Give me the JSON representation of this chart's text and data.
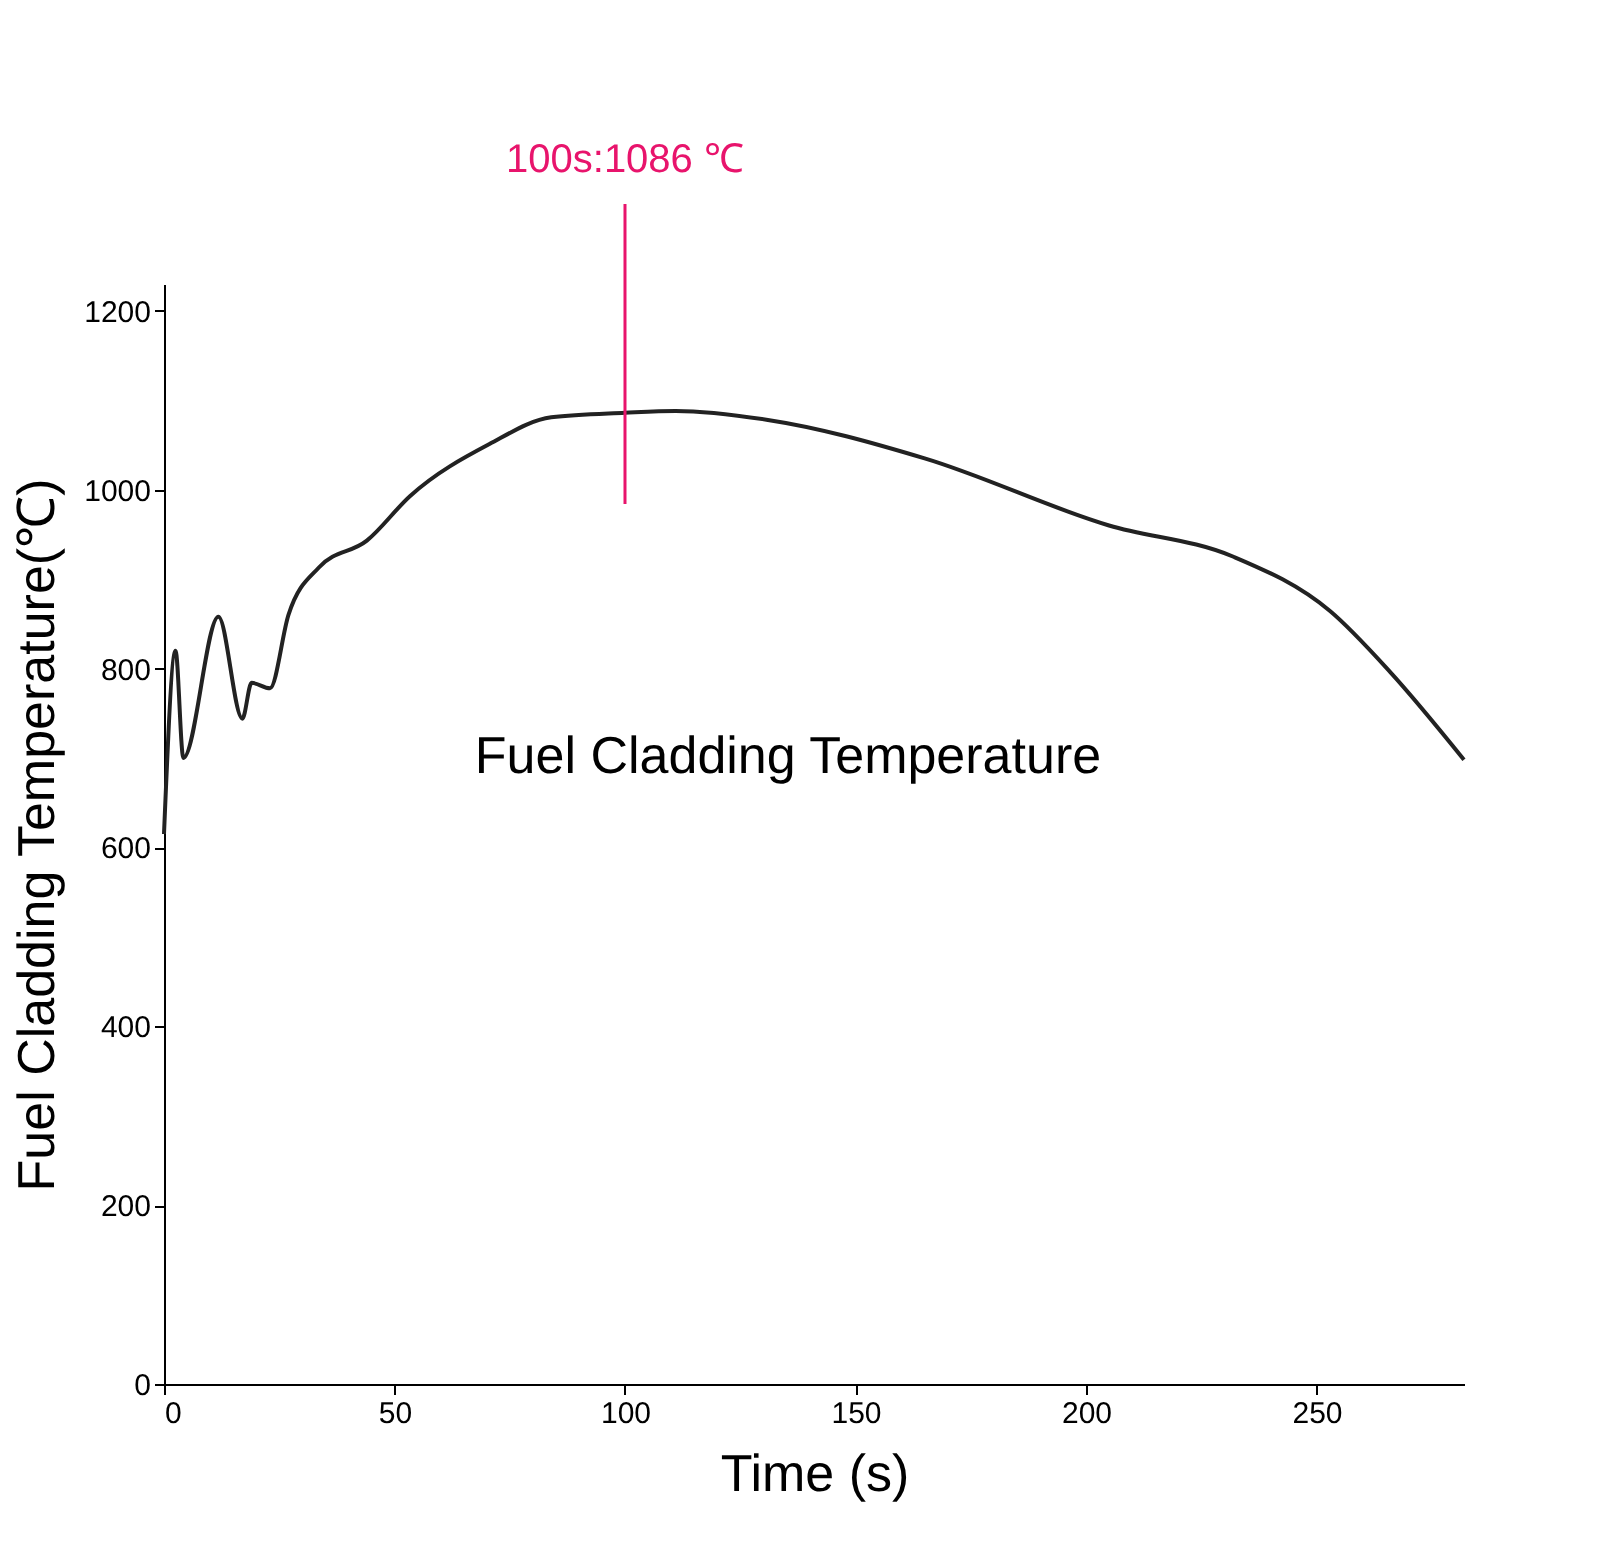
{
  "chart_data": {
    "type": "line",
    "xlabel": "Time (s)",
    "ylabel": "Fuel Cladding Temperature(℃)",
    "x": [
      0,
      2.5,
      4.2,
      11.8,
      17,
      19,
      23,
      27,
      33.6,
      44,
      53.4,
      70.6,
      84,
      100,
      111,
      131,
      165,
      205,
      232,
      253,
      266,
      282
    ],
    "series": [
      {
        "name": "Fuel Cladding Temperature",
        "color": "#222222",
        "values": [
          615,
          820,
          700,
          858,
          744,
          784,
          778,
          860,
          913,
          943,
          993,
          1051,
          1081,
          1086,
          1088,
          1078,
          1035,
          960,
          925,
          864,
          796,
          698
        ]
      }
    ],
    "xlim": [
      0,
      282
    ],
    "ylim": [
      0,
      1230
    ],
    "xticks": [
      0,
      50,
      100,
      150,
      200,
      250
    ],
    "yticks": [
      0,
      200,
      400,
      600,
      800,
      1000,
      1200
    ],
    "ref_lines": [
      {
        "axis": "x",
        "value": 100,
        "label": "100s:1086 ℃",
        "color": "#e8146c"
      }
    ],
    "grid": false
  }
}
